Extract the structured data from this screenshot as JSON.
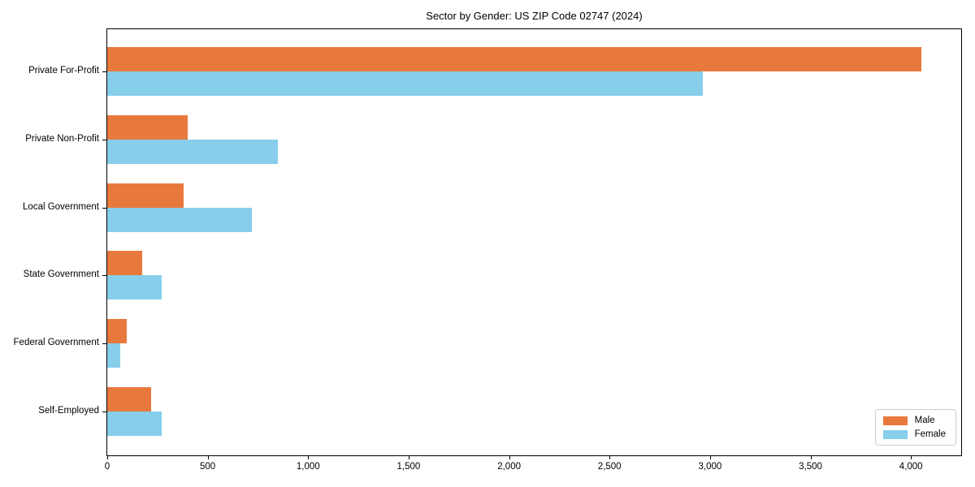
{
  "page": {
    "background": "#ffffff"
  },
  "chart_data": {
    "type": "bar",
    "orientation": "horizontal",
    "title": "Sector by Gender: US ZIP Code 02747 (2024)",
    "categories": [
      "Private For-Profit",
      "Private Non-Profit",
      "Local Government",
      "State Government",
      "Federal Government",
      "Self-Employed"
    ],
    "series": [
      {
        "name": "Male",
        "color": "#e8793d",
        "values": [
          4050,
          400,
          380,
          175,
          95,
          220
        ]
      },
      {
        "name": "Female",
        "color": "#87ceeb",
        "values": [
          2965,
          850,
          720,
          270,
          65,
          270
        ]
      }
    ],
    "xlabel": "",
    "ylabel": "",
    "xlim": [
      0,
      4250
    ],
    "xticks": [
      0,
      500,
      1000,
      1500,
      2000,
      2500,
      3000,
      3500,
      4000
    ],
    "xtick_labels": [
      "0",
      "500",
      "1,000",
      "1,500",
      "2,000",
      "2,500",
      "3,000",
      "3,500",
      "4,000"
    ],
    "grid": false,
    "legend": {
      "position": "lower right"
    }
  }
}
